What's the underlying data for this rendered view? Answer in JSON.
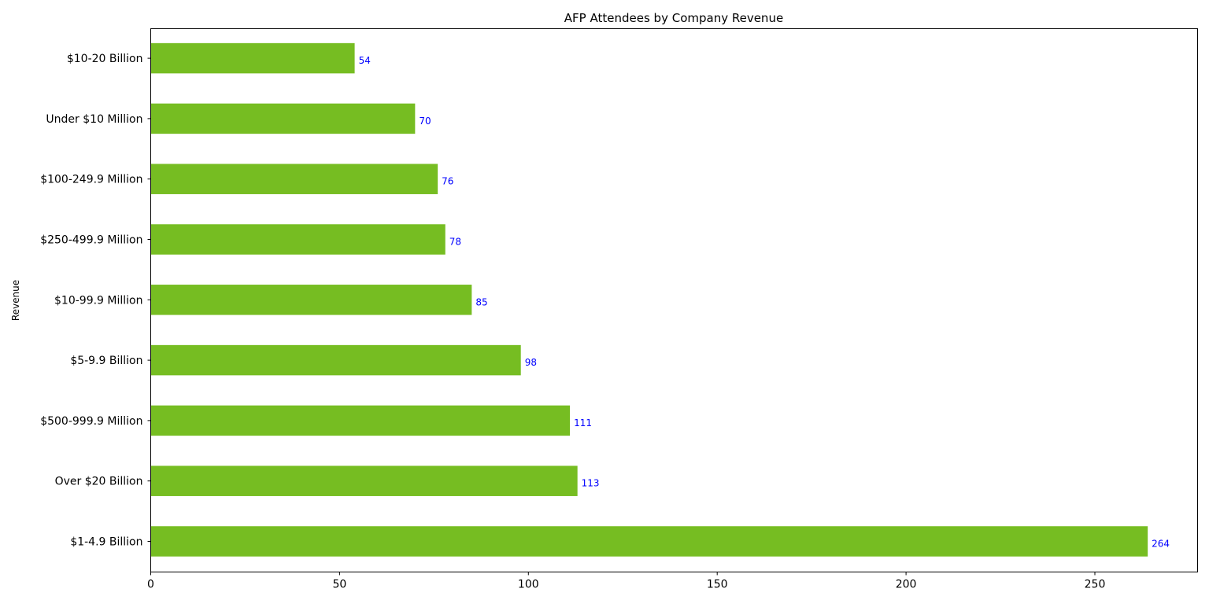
{
  "chart_data": {
    "type": "bar",
    "orientation": "horizontal",
    "title": "AFP Attendees by Company Revenue",
    "xlabel": "",
    "ylabel": "Revenue",
    "categories": [
      "$1-4.9 Billion",
      "Over $20 Billion",
      "$500-999.9 Million",
      "$5-9.9 Billion",
      "$10-99.9 Million",
      "$250-499.9 Million",
      "$100-249.9 Million",
      "Under $10 Million",
      "$10-20 Billion"
    ],
    "values": [
      264,
      113,
      111,
      98,
      85,
      78,
      76,
      70,
      54
    ],
    "xlim": [
      0,
      277.2
    ],
    "xticks": [
      0,
      50,
      100,
      150,
      200,
      250
    ],
    "grid": false,
    "legend": "none",
    "bar_color": "#76bd22",
    "label_color": "#0000ff",
    "axis_color": "#000000"
  }
}
